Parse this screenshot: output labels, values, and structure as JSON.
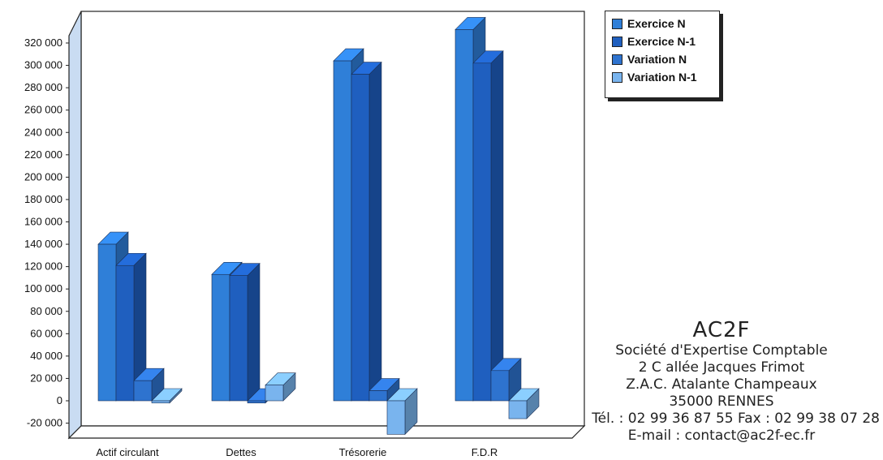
{
  "chart_data": {
    "type": "bar",
    "categories": [
      "Actif circulant",
      "Dettes",
      "Trésorerie",
      "F.D.R"
    ],
    "series": [
      {
        "name": "Exercice N",
        "values": [
          140000,
          113000,
          304000,
          332000
        ]
      },
      {
        "name": "Exercice N-1",
        "values": [
          121000,
          112000,
          292000,
          302000
        ]
      },
      {
        "name": "Variation N",
        "values": [
          18000,
          -2000,
          9000,
          27000
        ]
      },
      {
        "name": "Variation N-1",
        "values": [
          -2000,
          14000,
          -30000,
          -16000
        ]
      }
    ],
    "yticks": [
      "-20 000",
      "0",
      "20 000",
      "40 000",
      "60 000",
      "80 000",
      "100 000",
      "120 000",
      "140 000",
      "160 000",
      "180 000",
      "200 000",
      "220 000",
      "240 000",
      "260 000",
      "280 000",
      "300 000",
      "320 000"
    ],
    "ylim": [
      -20000,
      320000
    ],
    "legend_position": "top-right",
    "colors": [
      "#2f7fd8",
      "#1f5fbf",
      "#2e73cf",
      "#79b4ee"
    ]
  },
  "company": {
    "name": "AC2F",
    "line1": "Société d'Expertise Comptable",
    "line2": "2 C allée Jacques Frimot",
    "line3": "Z.A.C. Atalante Champeaux",
    "line4": "35000 RENNES",
    "line5": "Tél. : 02 99 36 87 55 Fax : 02 99 38 07 28",
    "line6": "E-mail : contact@ac2f-ec.fr"
  }
}
